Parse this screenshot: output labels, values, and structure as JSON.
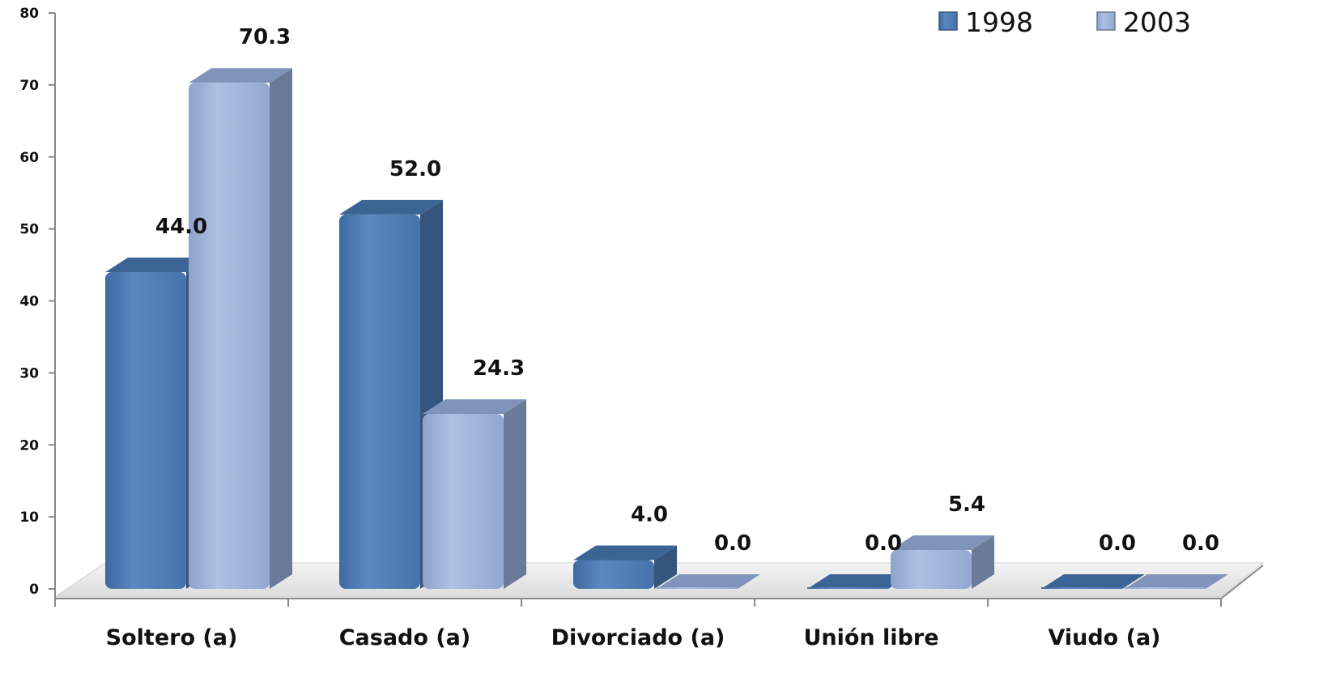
{
  "chart_data": {
    "type": "bar",
    "categories": [
      "Soltero (a)",
      "Casado (a)",
      "Divorciado (a)",
      "Unión libre",
      "Viudo (a)"
    ],
    "series": [
      {
        "name": "1998",
        "values": [
          44.0,
          52.0,
          4.0,
          0.0,
          0.0
        ],
        "labels": [
          "44.0",
          "52.0",
          "4.0",
          "0.0",
          "0.0"
        ]
      },
      {
        "name": "2003",
        "values": [
          70.3,
          24.3,
          0.0,
          5.4,
          0.0
        ],
        "labels": [
          "70.3",
          "24.3",
          "0.0",
          "5.4",
          "0.0"
        ]
      }
    ],
    "y_ticks": [
      "0",
      "10",
      "20",
      "30",
      "40",
      "50",
      "60",
      "70",
      "80"
    ],
    "ylim": [
      0,
      80
    ],
    "legend_position": "top-right",
    "grid": false,
    "style": "3d-columns",
    "colors": {
      "1998": "#4f7db4",
      "2003": "#9db2d9",
      "1998_dark": "#36557e",
      "2003_dark": "#6a7a98",
      "floor": "#e9e9e9",
      "axis": "#888888"
    }
  }
}
